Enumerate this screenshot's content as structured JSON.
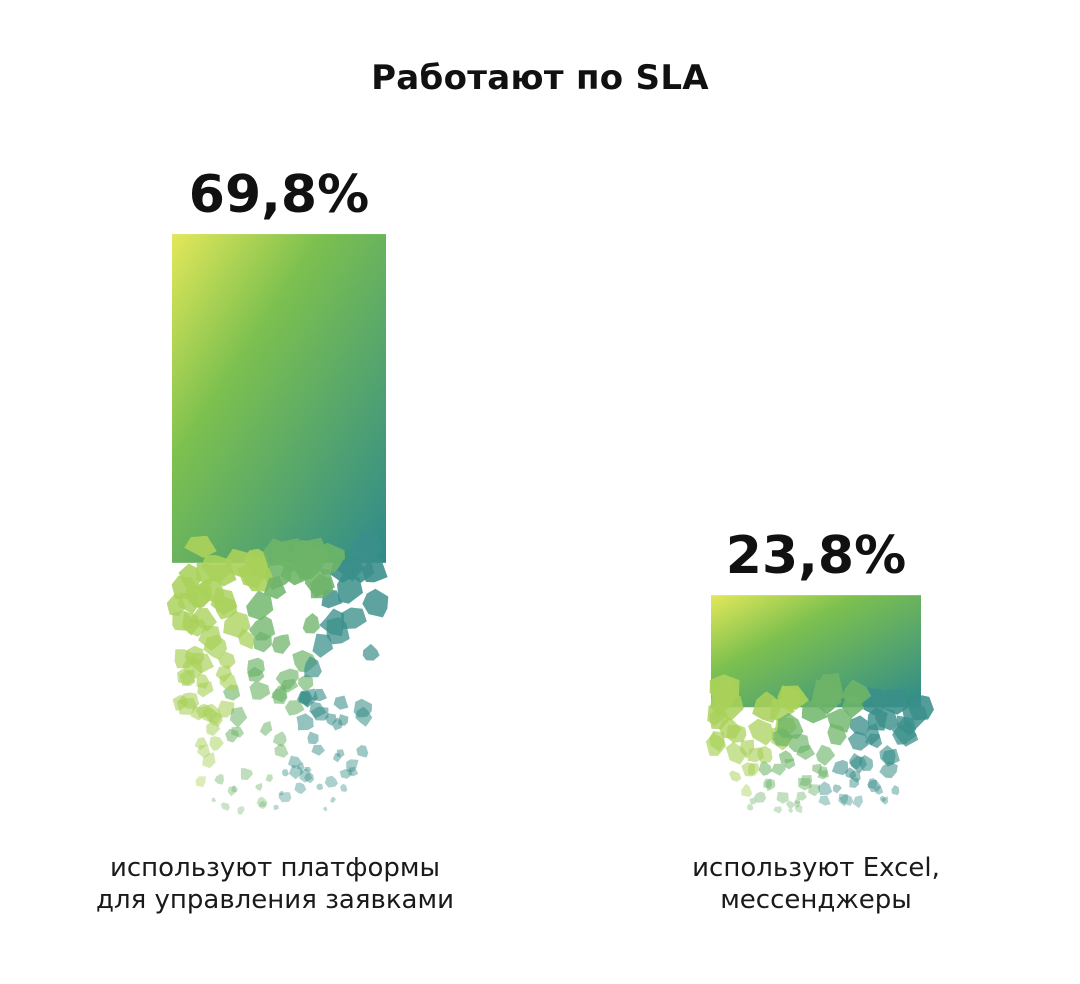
{
  "chart_data": {
    "type": "bar",
    "title": "Работают по SLA",
    "categories": [
      [
        "используют платформы",
        "для управления заявками"
      ],
      [
        "используют Excel,",
        "мессенджеры"
      ]
    ],
    "values": [
      69.8,
      23.8
    ],
    "value_labels": [
      "69,8%",
      "23,8%"
    ],
    "ylim": [
      0,
      100
    ],
    "grid": false,
    "xlabel": "",
    "ylabel": "",
    "colors": {
      "gradient_start": "#e3e85a",
      "gradient_mid": "#7cc04f",
      "gradient_end": "#2e8a8c",
      "text": "#111111"
    }
  }
}
